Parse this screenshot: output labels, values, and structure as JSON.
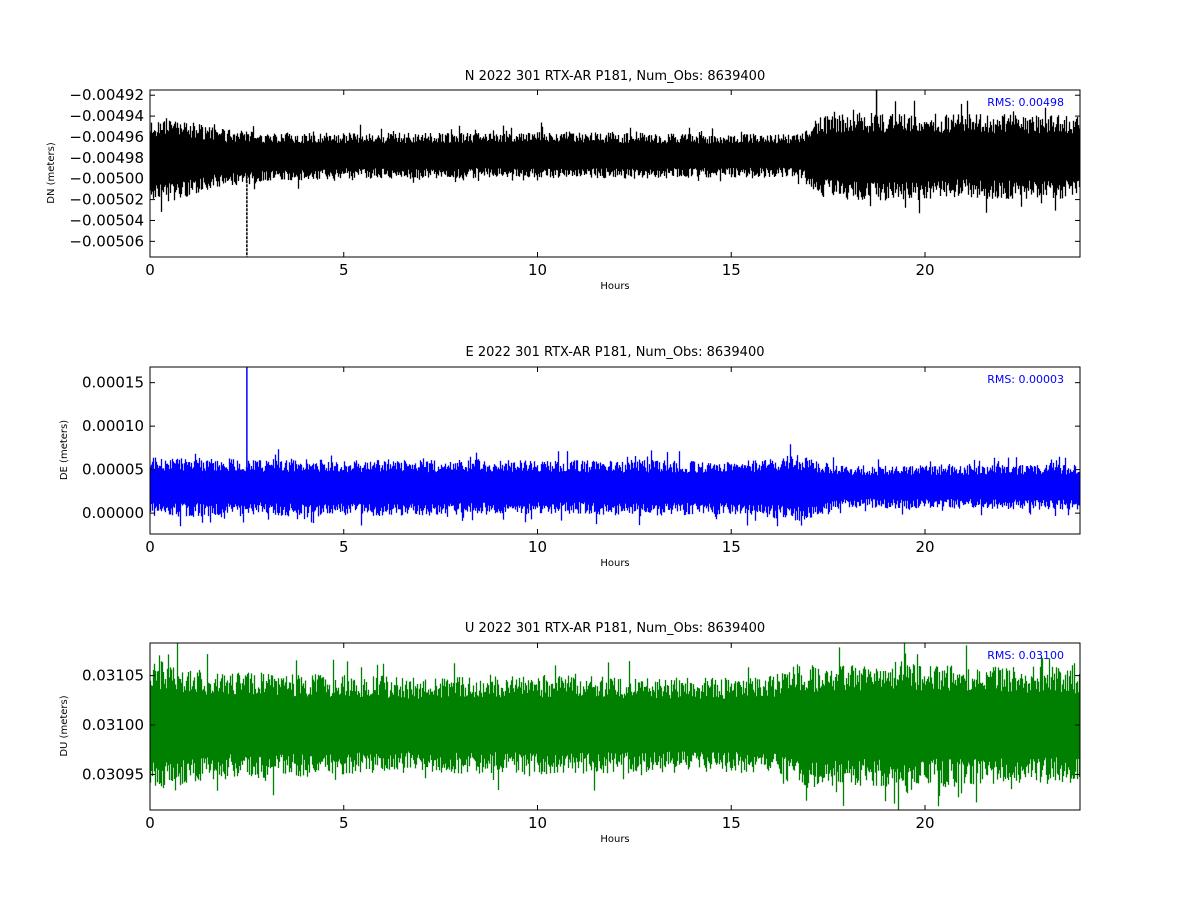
{
  "chart_data": [
    {
      "type": "line",
      "component": "N",
      "title": "N 2022 301 RTX-AR  P181, Num_Obs: 8639400",
      "xlabel": "Hours",
      "ylabel": "DN (meters)",
      "xlim": [
        0,
        24
      ],
      "ylim": [
        -0.005075,
        -0.004915
      ],
      "xticks": [
        0,
        5,
        10,
        15,
        20
      ],
      "xtick_labels": [
        "0",
        "5",
        "10",
        "15",
        "20"
      ],
      "yticks": [
        -0.00492,
        -0.00494,
        -0.00496,
        -0.00498,
        -0.005,
        -0.00502,
        -0.00504,
        -0.00506
      ],
      "ytick_labels": [
        "−0.00492",
        "−0.00494",
        "−0.00496",
        "−0.00498",
        "−0.00500",
        "−0.00502",
        "−0.00504",
        "−0.00506"
      ],
      "color": "#000000",
      "rms_label": "RMS:  0.00498",
      "grid": false,
      "envelope": {
        "hours": [
          0,
          0.5,
          1,
          1.5,
          2,
          2.5,
          3,
          4,
          5,
          6,
          7,
          8,
          9,
          10,
          11,
          12,
          13,
          14,
          15,
          16,
          16.8,
          17.2,
          18,
          19,
          20,
          21,
          22,
          23,
          24
        ],
        "center": [
          -0.004981,
          -0.004982,
          -0.004981,
          -0.00498,
          -0.00498,
          -0.00498,
          -0.004979,
          -0.004979,
          -0.004978,
          -0.004978,
          -0.004978,
          -0.004978,
          -0.004977,
          -0.004977,
          -0.004977,
          -0.004978,
          -0.004978,
          -0.004978,
          -0.004978,
          -0.004978,
          -0.004978,
          -0.004979,
          -0.004979,
          -0.004979,
          -0.004979,
          -0.004978,
          -0.004979,
          -0.004979,
          -0.004979
        ],
        "half_width": [
          4e-05,
          4e-05,
          3.6e-05,
          3e-05,
          2.7e-05,
          2.6e-05,
          2.4e-05,
          2.3e-05,
          2.2e-05,
          2.2e-05,
          2.2e-05,
          2.2e-05,
          2.2e-05,
          2.3e-05,
          2.2e-05,
          2.2e-05,
          2.2e-05,
          2.1e-05,
          2.1e-05,
          2.1e-05,
          2.1e-05,
          3.8e-05,
          4.2e-05,
          4.2e-05,
          4.2e-05,
          4e-05,
          4.1e-05,
          4e-05,
          4e-05
        ]
      },
      "spikes": [
        {
          "hour": 2.5,
          "y_min": -0.005075,
          "y_max": -0.00499
        },
        {
          "hour": 18.75,
          "y_min": -0.00499,
          "y_max": -0.004915
        }
      ]
    },
    {
      "type": "line",
      "component": "E",
      "title": "E 2022 301 RTX-AR  P181, Num_Obs: 8639400",
      "xlabel": "Hours",
      "ylabel": "DE (meters)",
      "xlim": [
        0,
        24
      ],
      "ylim": [
        -2.4e-05,
        0.000168
      ],
      "xticks": [
        0,
        5,
        10,
        15,
        20
      ],
      "xtick_labels": [
        "0",
        "5",
        "10",
        "15",
        "20"
      ],
      "yticks": [
        0.00015,
        0.0001,
        5e-05,
        0.0
      ],
      "ytick_labels": [
        "0.00015",
        "0.00010",
        "0.00005",
        "0.00000"
      ],
      "color": "#0000ff",
      "rms_label": "RMS:  0.00003",
      "grid": false,
      "envelope": {
        "hours": [
          0,
          1,
          2,
          3,
          4,
          5,
          6,
          7,
          8,
          9,
          10,
          11,
          12,
          13,
          14,
          15,
          16,
          16.6,
          17.2,
          17.8,
          18.5,
          19,
          20,
          21,
          22,
          23,
          24
        ],
        "center": [
          3e-05,
          3e-05,
          3e-05,
          3e-05,
          2.9e-05,
          2.9e-05,
          2.9e-05,
          2.9e-05,
          3e-05,
          3e-05,
          3e-05,
          3e-05,
          2.9e-05,
          2.9e-05,
          2.9e-05,
          2.9e-05,
          2.9e-05,
          2.9e-05,
          2.8e-05,
          3e-05,
          3e-05,
          3e-05,
          3e-05,
          3e-05,
          3e-05,
          3e-05,
          3e-05
        ],
        "half_width": [
          3.4e-05,
          3.4e-05,
          3.3e-05,
          3.2e-05,
          3.4e-05,
          3.2e-05,
          3.3e-05,
          3.2e-05,
          3.2e-05,
          3.2e-05,
          3.1e-05,
          3.1e-05,
          3.2e-05,
          3.3e-05,
          3.1e-05,
          3.1e-05,
          3.4e-05,
          4e-05,
          3.3e-05,
          2.5e-05,
          2.4e-05,
          2.5e-05,
          2.5e-05,
          2.5e-05,
          2.6e-05,
          2.6e-05,
          2.6e-05
        ]
      },
      "spikes": [
        {
          "hour": 2.5,
          "y_min": 4e-05,
          "y_max": 0.000168
        }
      ]
    },
    {
      "type": "line",
      "component": "U",
      "title": "U 2022 301 RTX-AR  P181, Num_Obs: 8639400",
      "xlabel": "Hours",
      "ylabel": "DU (meters)",
      "xlim": [
        0,
        24
      ],
      "ylim": [
        0.030914,
        0.031083
      ],
      "xticks": [
        0,
        5,
        10,
        15,
        20
      ],
      "xtick_labels": [
        "0",
        "5",
        "10",
        "15",
        "20"
      ],
      "yticks": [
        0.03105,
        0.031,
        0.03095
      ],
      "ytick_labels": [
        "0.03105",
        "0.03100",
        "0.03095"
      ],
      "color": "#008000",
      "rms_label": "RMS:  0.03100",
      "grid": false,
      "envelope": {
        "hours": [
          0,
          0.5,
          1,
          2,
          3,
          4,
          5,
          6,
          7,
          8,
          9,
          10,
          11,
          12,
          13,
          14,
          15,
          16,
          16.8,
          17.5,
          18,
          19,
          19.5,
          20,
          21,
          22,
          23,
          24
        ],
        "center": [
          0.031,
          0.031,
          0.031,
          0.031,
          0.031,
          0.031,
          0.031,
          0.031,
          0.031,
          0.031,
          0.031,
          0.031,
          0.031,
          0.031,
          0.031,
          0.031,
          0.031,
          0.031,
          0.031,
          0.030998,
          0.031,
          0.031,
          0.030997,
          0.031,
          0.031,
          0.031,
          0.031,
          0.031
        ],
        "half_width": [
          6.2e-05,
          6.6e-05,
          5.8e-05,
          5.3e-05,
          5.4e-05,
          5.2e-05,
          5.1e-05,
          5e-05,
          4.8e-05,
          5e-05,
          4.9e-05,
          5.1e-05,
          5e-05,
          4.9e-05,
          4.9e-05,
          4.8e-05,
          4.8e-05,
          5e-05,
          6.4e-05,
          6e-05,
          6.2e-05,
          6.3e-05,
          6.8e-05,
          6.2e-05,
          6.3e-05,
          5.8e-05,
          6e-05,
          5.8e-05
        ]
      },
      "spikes": []
    }
  ]
}
